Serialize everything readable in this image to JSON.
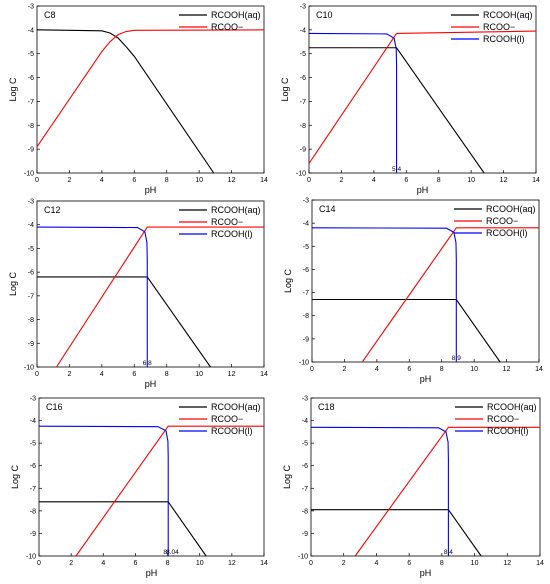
{
  "chart_data": [
    {
      "type": "line",
      "title": "C8",
      "xlabel": "pH",
      "ylabel": "Log C",
      "xlim": [
        0,
        14
      ],
      "ylim": [
        -10,
        -3
      ],
      "xticks": [
        "0",
        "2",
        "4",
        "6",
        "8",
        "10",
        "12",
        "14"
      ],
      "yticks": [
        "-3",
        "-4",
        "-5",
        "-6",
        "-7",
        "-8",
        "-9",
        "-10"
      ],
      "legend_position": "top-right",
      "series": [
        {
          "name": "RCOOH(aq)",
          "color": "#000000",
          "x": [
            0,
            4.0,
            4.5,
            5.0,
            5.5,
            6.0,
            10.9
          ],
          "y": [
            -4.0,
            -4.04,
            -4.13,
            -4.34,
            -4.71,
            -5.11,
            -10.0
          ]
        },
        {
          "name": "RCOO−",
          "color": "#ff0000",
          "x": [
            0,
            4.0,
            4.5,
            5.0,
            5.5,
            6.0,
            14
          ],
          "y": [
            -8.9,
            -4.91,
            -4.5,
            -4.2,
            -4.07,
            -4.02,
            -4.0
          ]
        }
      ],
      "annotations": []
    },
    {
      "type": "line",
      "title": "C10",
      "xlabel": "pH",
      "ylabel": "Log C",
      "xlim": [
        0,
        14
      ],
      "ylim": [
        -10,
        -3
      ],
      "xticks": [
        "0",
        "2",
        "4",
        "6",
        "8",
        "10",
        "12",
        "14"
      ],
      "yticks": [
        "-3",
        "-4",
        "-5",
        "-6",
        "-7",
        "-8",
        "-9",
        "-10"
      ],
      "legend_position": "top-right",
      "series": [
        {
          "name": "RCOOH(aq)",
          "color": "#000000",
          "x": [
            0,
            5.4,
            10.8
          ],
          "y": [
            -4.75,
            -4.75,
            -10.0
          ]
        },
        {
          "name": "RCOO−",
          "color": "#ff0000",
          "x": [
            0,
            5.4,
            14
          ],
          "y": [
            -9.6,
            -4.15,
            -4.05
          ]
        },
        {
          "name": "RCOOH(l)",
          "color": "#0000ff",
          "x": [
            0,
            4.8,
            5.25,
            5.38,
            5.4,
            5.4
          ],
          "y": [
            -4.15,
            -4.17,
            -4.35,
            -4.8,
            -5.5,
            -10.0
          ]
        }
      ],
      "annotations": [
        {
          "text": "5.4",
          "x": 5.4
        }
      ]
    },
    {
      "type": "line",
      "title": "C12",
      "xlabel": "pH",
      "ylabel": "Log C",
      "xlim": [
        0,
        14
      ],
      "ylim": [
        -10,
        -3
      ],
      "xticks": [
        "0",
        "2",
        "4",
        "6",
        "8",
        "10",
        "12",
        "14"
      ],
      "yticks": [
        "-3",
        "-4",
        "-5",
        "-6",
        "-7",
        "-8",
        "-9",
        "-10"
      ],
      "legend_position": "top-right",
      "series": [
        {
          "name": "RCOOH(aq)",
          "color": "#000000",
          "x": [
            0,
            6.8,
            10.7
          ],
          "y": [
            -6.2,
            -6.2,
            -10.0
          ]
        },
        {
          "name": "RCOO−",
          "color": "#ff0000",
          "x": [
            1.2,
            6.8,
            14
          ],
          "y": [
            -10.0,
            -4.1,
            -4.1
          ]
        },
        {
          "name": "RCOOH(l)",
          "color": "#0000ff",
          "x": [
            0,
            6.2,
            6.65,
            6.78,
            6.8,
            6.8
          ],
          "y": [
            -4.1,
            -4.12,
            -4.3,
            -4.75,
            -5.5,
            -10.0
          ]
        }
      ],
      "annotations": [
        {
          "text": "6.8",
          "x": 6.8
        }
      ]
    },
    {
      "type": "line",
      "title": "C14",
      "xlabel": "pH",
      "ylabel": "Log C",
      "xlim": [
        0,
        14
      ],
      "ylim": [
        -10,
        -3
      ],
      "xticks": [
        "0",
        "2",
        "4",
        "6",
        "8",
        "10",
        "12",
        "14"
      ],
      "yticks": [
        "-3",
        "-4",
        "-5",
        "-6",
        "-7",
        "-8",
        "-9",
        "-10"
      ],
      "legend_position": "top-right",
      "series": [
        {
          "name": "RCOOH(aq)",
          "color": "#000000",
          "x": [
            0,
            8.9,
            11.6
          ],
          "y": [
            -7.3,
            -7.3,
            -10.0
          ]
        },
        {
          "name": "RCOO−",
          "color": "#ff0000",
          "x": [
            3.1,
            8.9,
            14
          ],
          "y": [
            -10.0,
            -4.2,
            -4.2
          ]
        },
        {
          "name": "RCOOH(l)",
          "color": "#0000ff",
          "x": [
            0,
            8.3,
            8.75,
            8.88,
            8.9,
            8.9
          ],
          "y": [
            -4.2,
            -4.22,
            -4.4,
            -4.85,
            -5.6,
            -10.0
          ]
        }
      ],
      "annotations": [
        {
          "text": "8.9",
          "x": 8.9
        }
      ]
    },
    {
      "type": "line",
      "title": "C16",
      "xlabel": "pH",
      "ylabel": "Log C",
      "xlim": [
        0,
        14
      ],
      "ylim": [
        -10,
        -3
      ],
      "xticks": [
        "0",
        "2",
        "4",
        "6",
        "8",
        "10",
        "12",
        "14"
      ],
      "yticks": [
        "-3",
        "-4",
        "-5",
        "-6",
        "-7",
        "-8",
        "-9",
        "-10"
      ],
      "legend_position": "top-right",
      "series": [
        {
          "name": "RCOOH(aq)",
          "color": "#000000",
          "x": [
            0,
            8.04,
            10.4
          ],
          "y": [
            -7.6,
            -7.6,
            -10.0
          ]
        },
        {
          "name": "RCOO−",
          "color": "#ff0000",
          "x": [
            2.3,
            8.04,
            14
          ],
          "y": [
            -10.0,
            -4.25,
            -4.25
          ]
        },
        {
          "name": "RCOOH(l)",
          "color": "#0000ff",
          "x": [
            0,
            7.4,
            7.9,
            8.02,
            8.04,
            8.04
          ],
          "y": [
            -4.25,
            -4.27,
            -4.45,
            -4.9,
            -5.6,
            -10.0
          ]
        }
      ],
      "annotations": [
        {
          "text": "8",
          "x": 7.85
        },
        {
          "text": "8.04",
          "x": 8.3
        }
      ]
    },
    {
      "type": "line",
      "title": "C18",
      "xlabel": "pH",
      "ylabel": "Log C",
      "xlim": [
        0,
        14
      ],
      "ylim": [
        -10,
        -3
      ],
      "xticks": [
        "0",
        "2",
        "4",
        "6",
        "8",
        "10",
        "12",
        "14"
      ],
      "yticks": [
        "-3",
        "-4",
        "-5",
        "-6",
        "-7",
        "-8",
        "-9",
        "-10"
      ],
      "legend_position": "top-right",
      "series": [
        {
          "name": "RCOOH(aq)",
          "color": "#000000",
          "x": [
            0,
            8.4,
            10.4
          ],
          "y": [
            -7.95,
            -7.95,
            -10.0
          ]
        },
        {
          "name": "RCOO−",
          "color": "#ff0000",
          "x": [
            2.7,
            8.4,
            14
          ],
          "y": [
            -10.0,
            -4.3,
            -4.3
          ]
        },
        {
          "name": "RCOOH(l)",
          "color": "#0000ff",
          "x": [
            0,
            7.8,
            8.25,
            8.38,
            8.4,
            8.4
          ],
          "y": [
            -4.3,
            -4.32,
            -4.5,
            -4.95,
            -5.7,
            -10.0
          ]
        }
      ],
      "annotations": [
        {
          "text": "8.4",
          "x": 8.4
        }
      ]
    }
  ]
}
